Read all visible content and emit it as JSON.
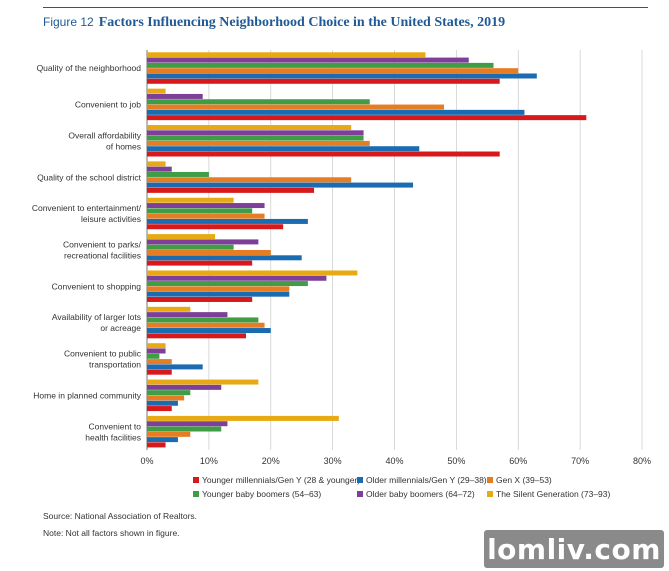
{
  "figure": {
    "label": "Figure 12",
    "title": "Factors Influencing Neighborhood Choice in the United States, 2019",
    "source": "Source: National Association of Realtors.",
    "note": "Note: Not all factors shown in figure."
  },
  "watermark": "lomliv.com",
  "chart_data": {
    "type": "bar",
    "orientation": "horizontal",
    "title": "Factors Influencing Neighborhood Choice in the United States, 2019",
    "xlabel": "",
    "ylabel": "",
    "xlim": [
      0,
      80
    ],
    "x_ticks": [
      "0%",
      "10%",
      "20%",
      "30%",
      "40%",
      "50%",
      "60%",
      "70%",
      "80%"
    ],
    "grid": "vertical",
    "legend_position": "bottom",
    "categories": [
      [
        "Quality of the neighborhood"
      ],
      [
        "Convenient to job"
      ],
      [
        "Overall affordability",
        "of homes"
      ],
      [
        "Quality of the school district"
      ],
      [
        "Convenient to entertainment/",
        "leisure activities"
      ],
      [
        "Convenient to parks/",
        "recreational facilities"
      ],
      [
        "Convenient to shopping"
      ],
      [
        "Availability of larger lots",
        "or acreage"
      ],
      [
        "Convenient to public",
        "transportation"
      ],
      [
        "Home in planned community"
      ],
      [
        "Convenient to",
        "health facilities"
      ]
    ],
    "series": [
      {
        "name": "The Silent Generation (73–93)",
        "color": "#e8aa14",
        "values": [
          45,
          3,
          33,
          3,
          14,
          11,
          34,
          7,
          3,
          18,
          31
        ]
      },
      {
        "name": "Older baby boomers (64–72)",
        "color": "#7e3f98",
        "values": [
          52,
          9,
          35,
          4,
          19,
          18,
          29,
          13,
          3,
          12,
          13
        ]
      },
      {
        "name": "Younger baby boomers (54–63)",
        "color": "#3f9d46",
        "values": [
          56,
          36,
          35,
          10,
          17,
          14,
          26,
          18,
          2,
          7,
          12
        ]
      },
      {
        "name": "Gen X (39–53)",
        "color": "#e67d22",
        "values": [
          60,
          48,
          36,
          33,
          19,
          20,
          23,
          19,
          4,
          6,
          7
        ]
      },
      {
        "name": "Older millennials/Gen Y (29–38)",
        "color": "#1b6bb0",
        "values": [
          63,
          61,
          44,
          43,
          26,
          25,
          23,
          20,
          9,
          5,
          5
        ]
      },
      {
        "name": "Younger millennials/Gen Y (28 & younger)",
        "color": "#d7191c",
        "values": [
          57,
          71,
          57,
          27,
          22,
          17,
          17,
          16,
          4,
          4,
          3
        ]
      }
    ],
    "legend_order": [
      "Younger millennials/Gen Y (28 & younger)",
      "Older millennials/Gen Y (29–38)",
      "Gen X (39–53)",
      "Younger baby boomers (54–63)",
      "Older baby boomers (64–72)",
      "The Silent Generation (73–93)"
    ]
  }
}
